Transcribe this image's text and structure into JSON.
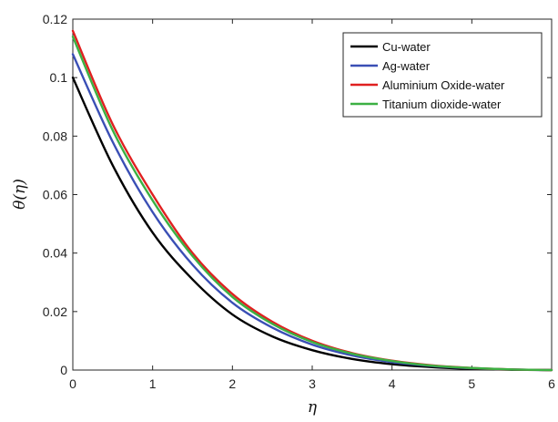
{
  "chart_data": {
    "type": "line",
    "title": "",
    "xlabel": "η",
    "ylabel": "θ(η)",
    "xlim": [
      0,
      6
    ],
    "ylim": [
      0,
      0.12
    ],
    "x_ticks": [
      "0",
      "1",
      "2",
      "3",
      "4",
      "5",
      "6"
    ],
    "y_ticks": [
      "0",
      "0.02",
      "0.04",
      "0.06",
      "0.08",
      "0.1",
      "0.12"
    ],
    "grid": false,
    "legend_position": "top-right",
    "x": [
      0,
      0.5,
      1,
      1.5,
      2,
      2.5,
      3,
      3.5,
      4,
      4.5,
      5,
      5.5,
      6
    ],
    "series": [
      {
        "name": "Cu-water",
        "color": "#000000",
        "values": [
          0.1,
          0.07,
          0.047,
          0.031,
          0.019,
          0.0115,
          0.0068,
          0.0038,
          0.002,
          0.001,
          0.0004,
          0.0001,
          0
        ]
      },
      {
        "name": "Ag-water",
        "color": "#3a4fb5",
        "values": [
          0.108,
          0.078,
          0.054,
          0.036,
          0.023,
          0.0145,
          0.0087,
          0.005,
          0.0027,
          0.0014,
          0.0006,
          0.0002,
          0
        ]
      },
      {
        "name": "Aluminium Oxide-water",
        "color": "#e02020",
        "values": [
          0.116,
          0.084,
          0.06,
          0.04,
          0.026,
          0.0165,
          0.01,
          0.0058,
          0.0032,
          0.0016,
          0.0007,
          0.0002,
          0
        ]
      },
      {
        "name": "Titanium dioxide-water",
        "color": "#3cb043",
        "values": [
          0.114,
          0.082,
          0.058,
          0.039,
          0.025,
          0.0158,
          0.0096,
          0.0056,
          0.0031,
          0.0015,
          0.0007,
          0.0002,
          0
        ]
      }
    ]
  }
}
